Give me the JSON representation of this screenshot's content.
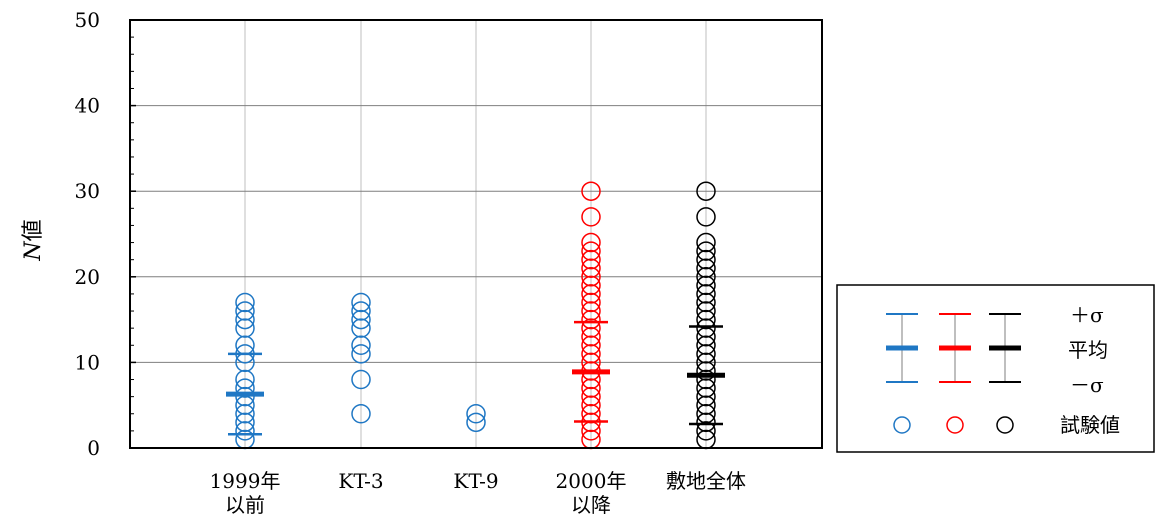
{
  "chart_data": {
    "type": "scatter",
    "ylabel_italic": "N",
    "ylabel_rest": "値",
    "ylim": [
      0,
      50
    ],
    "yticks": [
      0,
      10,
      20,
      30,
      40,
      50
    ],
    "grid": "horizontal and vertical",
    "legend_position": "right",
    "categories": [
      {
        "line1": "1999年",
        "line2": "以前"
      },
      {
        "line1": "KT-3",
        "line2": ""
      },
      {
        "line1": "KT-9",
        "line2": ""
      },
      {
        "line1": "2000年",
        "line2": "以降"
      },
      {
        "line1": "敷地全体",
        "line2": ""
      }
    ],
    "series": [
      {
        "category_index": 0,
        "color": "#1f77c4",
        "test_values": [
          1,
          2,
          3,
          4,
          5,
          6,
          7,
          8,
          10,
          11,
          12,
          14,
          15,
          16,
          17
        ],
        "mean": 6.3,
        "plus_sigma": 11.0,
        "minus_sigma": 1.6
      },
      {
        "category_index": 1,
        "color": "#1f77c4",
        "test_values": [
          4,
          8,
          11,
          12,
          14,
          15,
          16,
          17
        ]
      },
      {
        "category_index": 2,
        "color": "#1f77c4",
        "test_values": [
          3,
          4
        ]
      },
      {
        "category_index": 3,
        "color": "#ff0000",
        "test_values": [
          1,
          2,
          3,
          4,
          5,
          6,
          7,
          8,
          9,
          10,
          11,
          12,
          13,
          14,
          15,
          16,
          17,
          18,
          19,
          20,
          21,
          22,
          23,
          24,
          27,
          30
        ],
        "mean": 8.9,
        "plus_sigma": 14.7,
        "minus_sigma": 3.1
      },
      {
        "category_index": 4,
        "color": "#000000",
        "test_values": [
          1,
          2,
          3,
          4,
          5,
          6,
          7,
          8,
          9,
          10,
          11,
          12,
          13,
          14,
          15,
          16,
          17,
          18,
          19,
          20,
          21,
          22,
          23,
          24,
          27,
          30
        ],
        "mean": 8.5,
        "plus_sigma": 14.2,
        "minus_sigma": 2.8
      }
    ],
    "legend": {
      "plus_sigma_label": "＋σ",
      "mean_label": "平均",
      "minus_sigma_label": "－σ",
      "test_value_label": "試験値",
      "colors": [
        "#1f77c4",
        "#ff0000",
        "#000000"
      ]
    }
  }
}
